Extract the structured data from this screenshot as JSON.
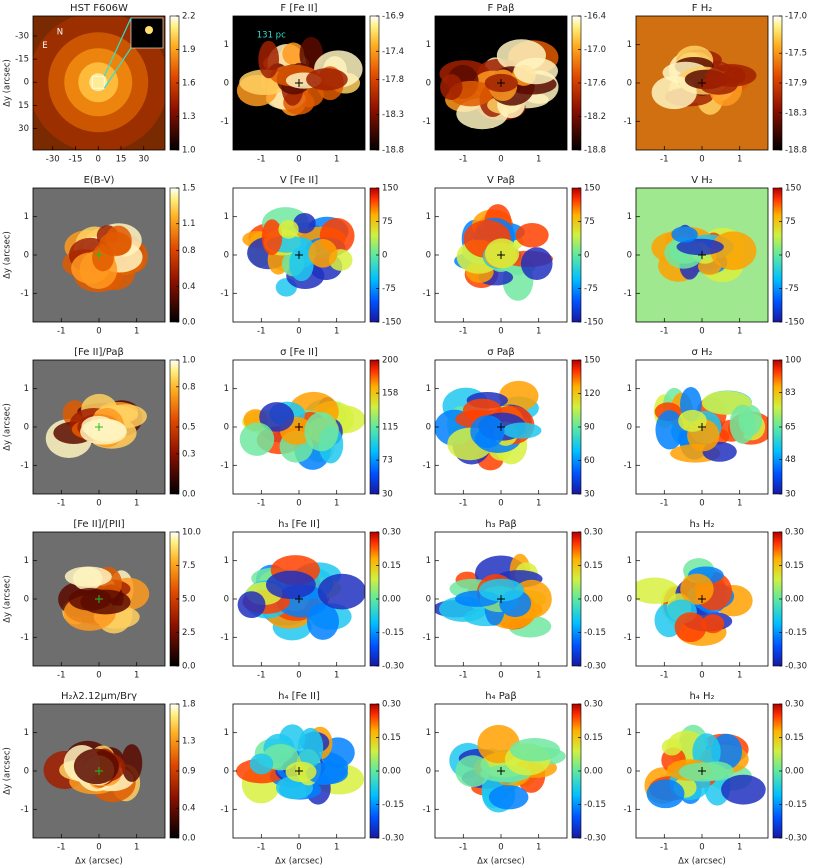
{
  "x_label": "Δx (arcsec)",
  "y_label": "Δy (arcsec)",
  "panels": [
    {
      "title": "HST F606W",
      "background": "#7a2a00",
      "colormap": "heat",
      "clim": [
        1.0,
        2.2
      ],
      "cticks": [
        2.2,
        1.9,
        1.6,
        1.3,
        {
          "value": 1.0,
          "label": "1.0"
        }
      ],
      "xlim": [
        -43,
        44
      ],
      "ylim": [
        44,
        -43
      ],
      "xticks": [
        -30,
        -15,
        0,
        15,
        30
      ],
      "yticks": [
        -30,
        -15,
        0,
        15,
        30
      ],
      "annotations": [
        "N",
        "E"
      ]
    },
    {
      "title": "F [Fe II]",
      "background": "#000000",
      "colormap": "heat",
      "clim": [
        -18.8,
        -16.9
      ],
      "cticks": [
        -16.9,
        -17.4,
        -17.8,
        -18.3,
        -18.8
      ],
      "xlim": [
        -1.75,
        1.75
      ],
      "ylim": [
        -1.75,
        1.75
      ],
      "xticks": [
        -1,
        0,
        1
      ],
      "yticks": [
        1,
        0,
        -1
      ],
      "annotations": [
        "131 pc"
      ]
    },
    {
      "title": "F Paβ",
      "background": "#000000",
      "colormap": "heat",
      "clim": [
        -18.8,
        -16.4
      ],
      "cticks": [
        -16.4,
        {
          "value": -17.0,
          "label": "-17.0"
        },
        -17.6,
        -18.2,
        -18.8
      ],
      "xlim": [
        -1.75,
        1.75
      ],
      "ylim": [
        -1.75,
        1.75
      ],
      "xticks": [
        -1,
        0,
        1
      ],
      "yticks": [
        1,
        0,
        -1
      ]
    },
    {
      "title": "F H₂",
      "background": "#d07010",
      "colormap": "heat",
      "clim": [
        -18.8,
        -17.0
      ],
      "cticks": [
        {
          "value": -17.0,
          "label": "-17.0"
        },
        -17.5,
        -17.9,
        -18.3,
        -18.8
      ],
      "xlim": [
        -1.75,
        1.75
      ],
      "ylim": [
        -1.75,
        1.75
      ],
      "xticks": [
        -1,
        0,
        1
      ],
      "yticks": [
        1,
        0,
        -1
      ]
    },
    {
      "title": "E(B-V)",
      "background": "#6e6e6e",
      "colormap": "heat",
      "clim": [
        0.0,
        1.5
      ],
      "cticks": [
        1.5,
        1.1,
        0.8,
        0.4,
        {
          "value": 0.0,
          "label": "0.0"
        }
      ],
      "xlim": [
        -1.75,
        1.75
      ],
      "ylim": [
        -1.75,
        1.75
      ],
      "xticks": [
        -1,
        0,
        1
      ],
      "yticks": [
        1,
        0,
        -1
      ]
    },
    {
      "title": "V [Fe II]",
      "background": "#ffffff",
      "colormap": "rainbow",
      "clim": [
        -150,
        150
      ],
      "cticks": [
        150,
        75,
        0,
        -75,
        -150
      ],
      "xlim": [
        -1.75,
        1.75
      ],
      "ylim": [
        -1.75,
        1.75
      ],
      "xticks": [
        -1,
        0,
        1
      ],
      "yticks": [
        1,
        0,
        -1
      ]
    },
    {
      "title": "V Paβ",
      "background": "#ffffff",
      "colormap": "rainbow",
      "clim": [
        -150,
        150
      ],
      "cticks": [
        150,
        75,
        0,
        -75,
        -150
      ],
      "xlim": [
        -1.75,
        1.75
      ],
      "ylim": [
        -1.75,
        1.75
      ],
      "xticks": [
        -1,
        0,
        1
      ],
      "yticks": [
        1,
        0,
        -1
      ]
    },
    {
      "title": "V H₂",
      "background": "#a0e890",
      "colormap": "rainbow",
      "clim": [
        -150,
        150
      ],
      "cticks": [
        150,
        75,
        0,
        -75,
        -150
      ],
      "xlim": [
        -1.75,
        1.75
      ],
      "ylim": [
        -1.75,
        1.75
      ],
      "xticks": [
        -1,
        0,
        1
      ],
      "yticks": [
        1,
        0,
        -1
      ]
    },
    {
      "title": "[Fe II]/Paβ",
      "background": "#6e6e6e",
      "colormap": "heat",
      "clim": [
        0.0,
        1.0
      ],
      "cticks": [
        {
          "value": 1.0,
          "label": "1.0"
        },
        0.8,
        0.5,
        0.3,
        {
          "value": 0.0,
          "label": "0.0"
        }
      ],
      "xlim": [
        -1.75,
        1.75
      ],
      "ylim": [
        -1.75,
        1.75
      ],
      "xticks": [
        -1,
        0,
        1
      ],
      "yticks": [
        1,
        0,
        -1
      ]
    },
    {
      "title": "σ [Fe II]",
      "background": "#ffffff",
      "colormap": "rainbow",
      "clim": [
        30,
        200
      ],
      "cticks": [
        200,
        158,
        115,
        73,
        30
      ],
      "xlim": [
        -1.75,
        1.75
      ],
      "ylim": [
        -1.75,
        1.75
      ],
      "xticks": [
        -1,
        0,
        1
      ],
      "yticks": [
        1,
        0,
        -1
      ]
    },
    {
      "title": "σ Paβ",
      "background": "#ffffff",
      "colormap": "rainbow",
      "clim": [
        30,
        150
      ],
      "cticks": [
        150,
        120,
        90,
        60,
        30
      ],
      "xlim": [
        -1.75,
        1.75
      ],
      "ylim": [
        -1.75,
        1.75
      ],
      "xticks": [
        -1,
        0,
        1
      ],
      "yticks": [
        1,
        0,
        -1
      ]
    },
    {
      "title": "σ H₂",
      "background": "#ffffff",
      "colormap": "rainbow",
      "clim": [
        30,
        100
      ],
      "cticks": [
        100,
        83,
        65,
        48,
        30
      ],
      "xlim": [
        -1.75,
        1.75
      ],
      "ylim": [
        -1.75,
        1.75
      ],
      "xticks": [
        -1,
        0,
        1
      ],
      "yticks": [
        1,
        0,
        -1
      ]
    },
    {
      "title": "[Fe II]/[PII]",
      "background": "#6e6e6e",
      "colormap": "heat",
      "clim": [
        0.0,
        10.0
      ],
      "cticks": [
        {
          "value": 10.0,
          "label": "10.0"
        },
        7.5,
        {
          "value": 5.0,
          "label": "5.0"
        },
        2.5,
        {
          "value": 0.0,
          "label": "0.0"
        }
      ],
      "xlim": [
        -1.75,
        1.75
      ],
      "ylim": [
        -1.75,
        1.75
      ],
      "xticks": [
        -1,
        0,
        1
      ],
      "yticks": [
        1,
        0,
        -1
      ]
    },
    {
      "title": "h₃ [Fe II]",
      "background": "#ffffff",
      "colormap": "rainbow",
      "clim": [
        -0.3,
        0.3
      ],
      "cticks": [
        {
          "value": 0.3,
          "label": "0.30"
        },
        0.15,
        {
          "value": 0.0,
          "label": "0.00"
        },
        -0.15,
        {
          "value": -0.3,
          "label": "-0.30"
        }
      ],
      "xlim": [
        -1.75,
        1.75
      ],
      "ylim": [
        -1.75,
        1.75
      ],
      "xticks": [
        -1,
        0,
        1
      ],
      "yticks": [
        1,
        0,
        -1
      ]
    },
    {
      "title": "h₃ Paβ",
      "background": "#ffffff",
      "colormap": "rainbow",
      "clim": [
        -0.3,
        0.3
      ],
      "cticks": [
        {
          "value": 0.3,
          "label": "0.30"
        },
        0.15,
        {
          "value": 0.0,
          "label": "0.00"
        },
        -0.15,
        {
          "value": -0.3,
          "label": "-0.30"
        }
      ],
      "xlim": [
        -1.75,
        1.75
      ],
      "ylim": [
        -1.75,
        1.75
      ],
      "xticks": [
        -1,
        0,
        1
      ],
      "yticks": [
        1,
        0,
        -1
      ]
    },
    {
      "title": "h₃ H₂",
      "background": "#ffffff",
      "colormap": "rainbow",
      "clim": [
        -0.3,
        0.3
      ],
      "cticks": [
        {
          "value": 0.3,
          "label": "0.30"
        },
        0.15,
        {
          "value": 0.0,
          "label": "0.00"
        },
        -0.15,
        {
          "value": -0.3,
          "label": "-0.30"
        }
      ],
      "xlim": [
        -1.75,
        1.75
      ],
      "ylim": [
        -1.75,
        1.75
      ],
      "xticks": [
        -1,
        0,
        1
      ],
      "yticks": [
        1,
        0,
        -1
      ]
    },
    {
      "title": "H₂λ2.12μm/Brγ",
      "background": "#6e6e6e",
      "colormap": "heat",
      "clim": [
        0.0,
        1.8
      ],
      "cticks": [
        1.8,
        1.3,
        0.9,
        0.4,
        {
          "value": 0.0,
          "label": "0.0"
        }
      ],
      "xlim": [
        -1.75,
        1.75
      ],
      "ylim": [
        -1.75,
        1.75
      ],
      "xticks": [
        -1,
        0,
        1
      ],
      "yticks": [
        1,
        0,
        -1
      ]
    },
    {
      "title": "h₄ [Fe II]",
      "background": "#ffffff",
      "colormap": "rainbow",
      "clim": [
        -0.3,
        0.3
      ],
      "cticks": [
        {
          "value": 0.3,
          "label": "0.30"
        },
        0.15,
        {
          "value": 0.0,
          "label": "0.00"
        },
        -0.15,
        {
          "value": -0.3,
          "label": "-0.30"
        }
      ],
      "xlim": [
        -1.75,
        1.75
      ],
      "ylim": [
        -1.75,
        1.75
      ],
      "xticks": [
        -1,
        0,
        1
      ],
      "yticks": [
        1,
        0,
        -1
      ]
    },
    {
      "title": "h₄ Paβ",
      "background": "#ffffff",
      "colormap": "rainbow",
      "clim": [
        -0.3,
        0.3
      ],
      "cticks": [
        {
          "value": 0.3,
          "label": "0.30"
        },
        0.15,
        {
          "value": 0.0,
          "label": "0.00"
        },
        -0.15,
        {
          "value": -0.3,
          "label": "-0.30"
        }
      ],
      "xlim": [
        -1.75,
        1.75
      ],
      "ylim": [
        -1.75,
        1.75
      ],
      "xticks": [
        -1,
        0,
        1
      ],
      "yticks": [
        1,
        0,
        -1
      ]
    },
    {
      "title": "h₄ H₂",
      "background": "#ffffff",
      "colormap": "rainbow",
      "clim": [
        -0.3,
        0.3
      ],
      "cticks": [
        {
          "value": 0.3,
          "label": "0.30"
        },
        0.15,
        {
          "value": 0.0,
          "label": "0.00"
        },
        -0.15,
        {
          "value": -0.3,
          "label": "-0.30"
        }
      ],
      "xlim": [
        -1.75,
        1.75
      ],
      "ylim": [
        -1.75,
        1.75
      ],
      "xticks": [
        -1,
        0,
        1
      ],
      "yticks": [
        1,
        0,
        -1
      ]
    }
  ]
}
